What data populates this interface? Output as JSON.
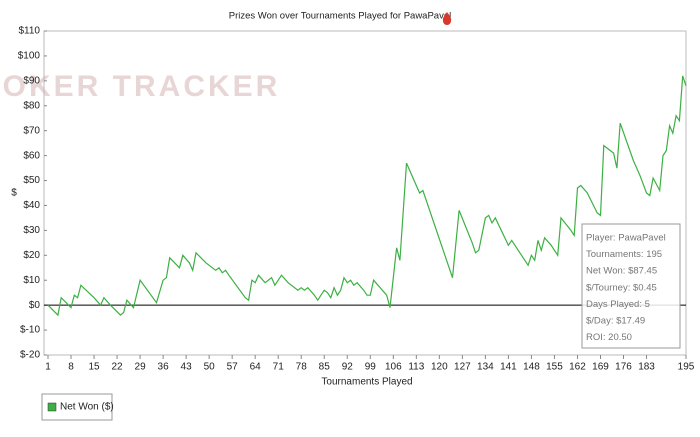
{
  "chart_data": {
    "type": "line",
    "title": "Prizes Won over Tournaments Played for PawaPavel",
    "watermark": "POKER TRACKER",
    "xlabel": "Tournaments Played",
    "ylabel": "$",
    "x": [
      1,
      4,
      5,
      8,
      9,
      10,
      11,
      15,
      17,
      18,
      20,
      23,
      24,
      25,
      27,
      29,
      34,
      36,
      37,
      38,
      41,
      42,
      44,
      45,
      46,
      49,
      51,
      52,
      53,
      54,
      55,
      56,
      61,
      62,
      63,
      64,
      65,
      67,
      69,
      70,
      72,
      74,
      77,
      78,
      79,
      80,
      82,
      83,
      85,
      86,
      87,
      88,
      89,
      90,
      91,
      92,
      93,
      94,
      95,
      97,
      98,
      99,
      100,
      104,
      105,
      107,
      108,
      110,
      114,
      115,
      124,
      126,
      130,
      131,
      132,
      134,
      135,
      136,
      137,
      141,
      142,
      147,
      148,
      149,
      150,
      151,
      152,
      154,
      156,
      157,
      160,
      161,
      162,
      163,
      165,
      168,
      169,
      170,
      173,
      174,
      175,
      179,
      181,
      183,
      184,
      185,
      187,
      188,
      189,
      190,
      191,
      192,
      193,
      194,
      195
    ],
    "series": [
      {
        "name": "Net Won ($)",
        "color": "#3cb043",
        "values": [
          0,
          -4,
          3,
          -1,
          4,
          3,
          8,
          3,
          0,
          3,
          0,
          -4,
          -3,
          2,
          -1,
          10,
          1,
          10,
          11,
          19,
          15,
          20,
          17,
          14,
          21,
          17,
          15,
          14,
          15,
          13,
          14,
          12,
          3,
          2,
          10,
          9,
          12,
          9,
          11,
          8,
          12,
          9,
          6,
          7,
          6,
          7,
          4,
          2,
          6,
          5,
          3,
          7,
          4,
          6,
          11,
          9,
          10,
          8,
          9,
          6,
          4,
          4,
          10,
          4,
          -1,
          23,
          18,
          57,
          45,
          46,
          11,
          38,
          25,
          21,
          22,
          35,
          36,
          33,
          35,
          24,
          26,
          16,
          20,
          18,
          26,
          22,
          27,
          24,
          20,
          35,
          30,
          28,
          47,
          48,
          45,
          37,
          36,
          64,
          61,
          55,
          73,
          58,
          52,
          45,
          44,
          51,
          46,
          60,
          62,
          72,
          69,
          76,
          74,
          92,
          88
        ]
      }
    ],
    "xlim": [
      1,
      195
    ],
    "xticks": [
      1,
      8,
      15,
      22,
      29,
      36,
      43,
      50,
      57,
      64,
      71,
      78,
      85,
      92,
      99,
      106,
      113,
      120,
      127,
      134,
      141,
      148,
      155,
      162,
      169,
      176,
      183,
      195
    ],
    "ylim": [
      -20,
      110
    ],
    "yticks": [
      {
        "value": 110,
        "label": "$110"
      },
      {
        "value": 100,
        "label": "$100"
      },
      {
        "value": 90,
        "label": "$90"
      },
      {
        "value": 80,
        "label": "$80"
      },
      {
        "value": 70,
        "label": "$70"
      },
      {
        "value": 60,
        "label": "$60"
      },
      {
        "value": 50,
        "label": "$50"
      },
      {
        "value": 40,
        "label": "$40"
      },
      {
        "value": 30,
        "label": "$30"
      },
      {
        "value": 20,
        "label": "$20"
      },
      {
        "value": 10,
        "label": "$10"
      },
      {
        "value": 0,
        "label": "$0"
      },
      {
        "value": -10,
        "label": "$-10"
      },
      {
        "value": -20,
        "label": "$-20"
      }
    ],
    "zero_line": true,
    "annotations": [
      "Player: PawaPavel",
      "Tournaments: 195",
      "Net Won: $87.45",
      "$/Tourney: $0.45",
      "Days Played: 5",
      "$/Day: $17.49",
      "ROI: 20.50"
    ]
  }
}
